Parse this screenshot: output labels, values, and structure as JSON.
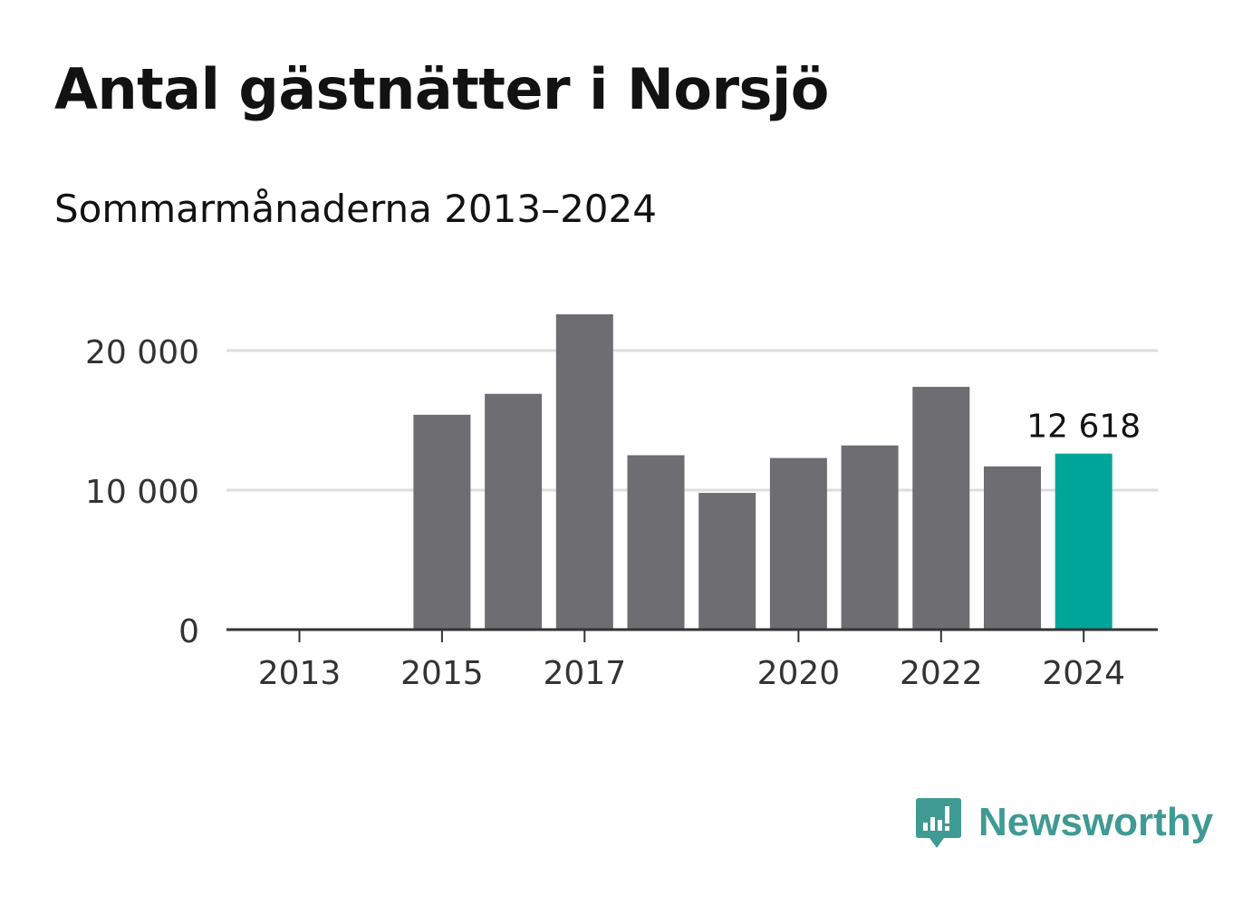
{
  "header": {
    "title": "Antal gästnätter i Norsjö",
    "subtitle": "Sommarmånaderna 2013–2024"
  },
  "brand": {
    "name": "Newsworthy",
    "icon": "newsworthy-logo-icon",
    "color": "#3f9a93"
  },
  "colors": {
    "bar": "#6e6d72",
    "highlight": "#00a59a",
    "grid": "#dddddd",
    "axis": "#333333",
    "text": "#333333"
  },
  "chart_data": {
    "type": "bar",
    "title": "Antal gästnätter i Norsjö",
    "subtitle": "Sommarmånaderna 2013–2024",
    "xlabel": "",
    "ylabel": "",
    "categories": [
      "2013",
      "2014",
      "2015",
      "2016",
      "2017",
      "2018",
      "2019",
      "2020",
      "2021",
      "2022",
      "2023",
      "2024"
    ],
    "values": [
      null,
      null,
      15400,
      16900,
      22600,
      12500,
      9800,
      12300,
      13200,
      17400,
      11700,
      12618
    ],
    "x_tick_labels": [
      "2013",
      "2015",
      "2017",
      "2020",
      "2022",
      "2024"
    ],
    "ylim": [
      0,
      23000
    ],
    "y_ticks": [
      0,
      10000,
      20000
    ],
    "y_tick_labels": [
      "0",
      "10 000",
      "20 000"
    ],
    "grid": true,
    "highlight_category": "2024",
    "data_labels": [
      {
        "category": "2024",
        "text": "12 618"
      }
    ]
  }
}
